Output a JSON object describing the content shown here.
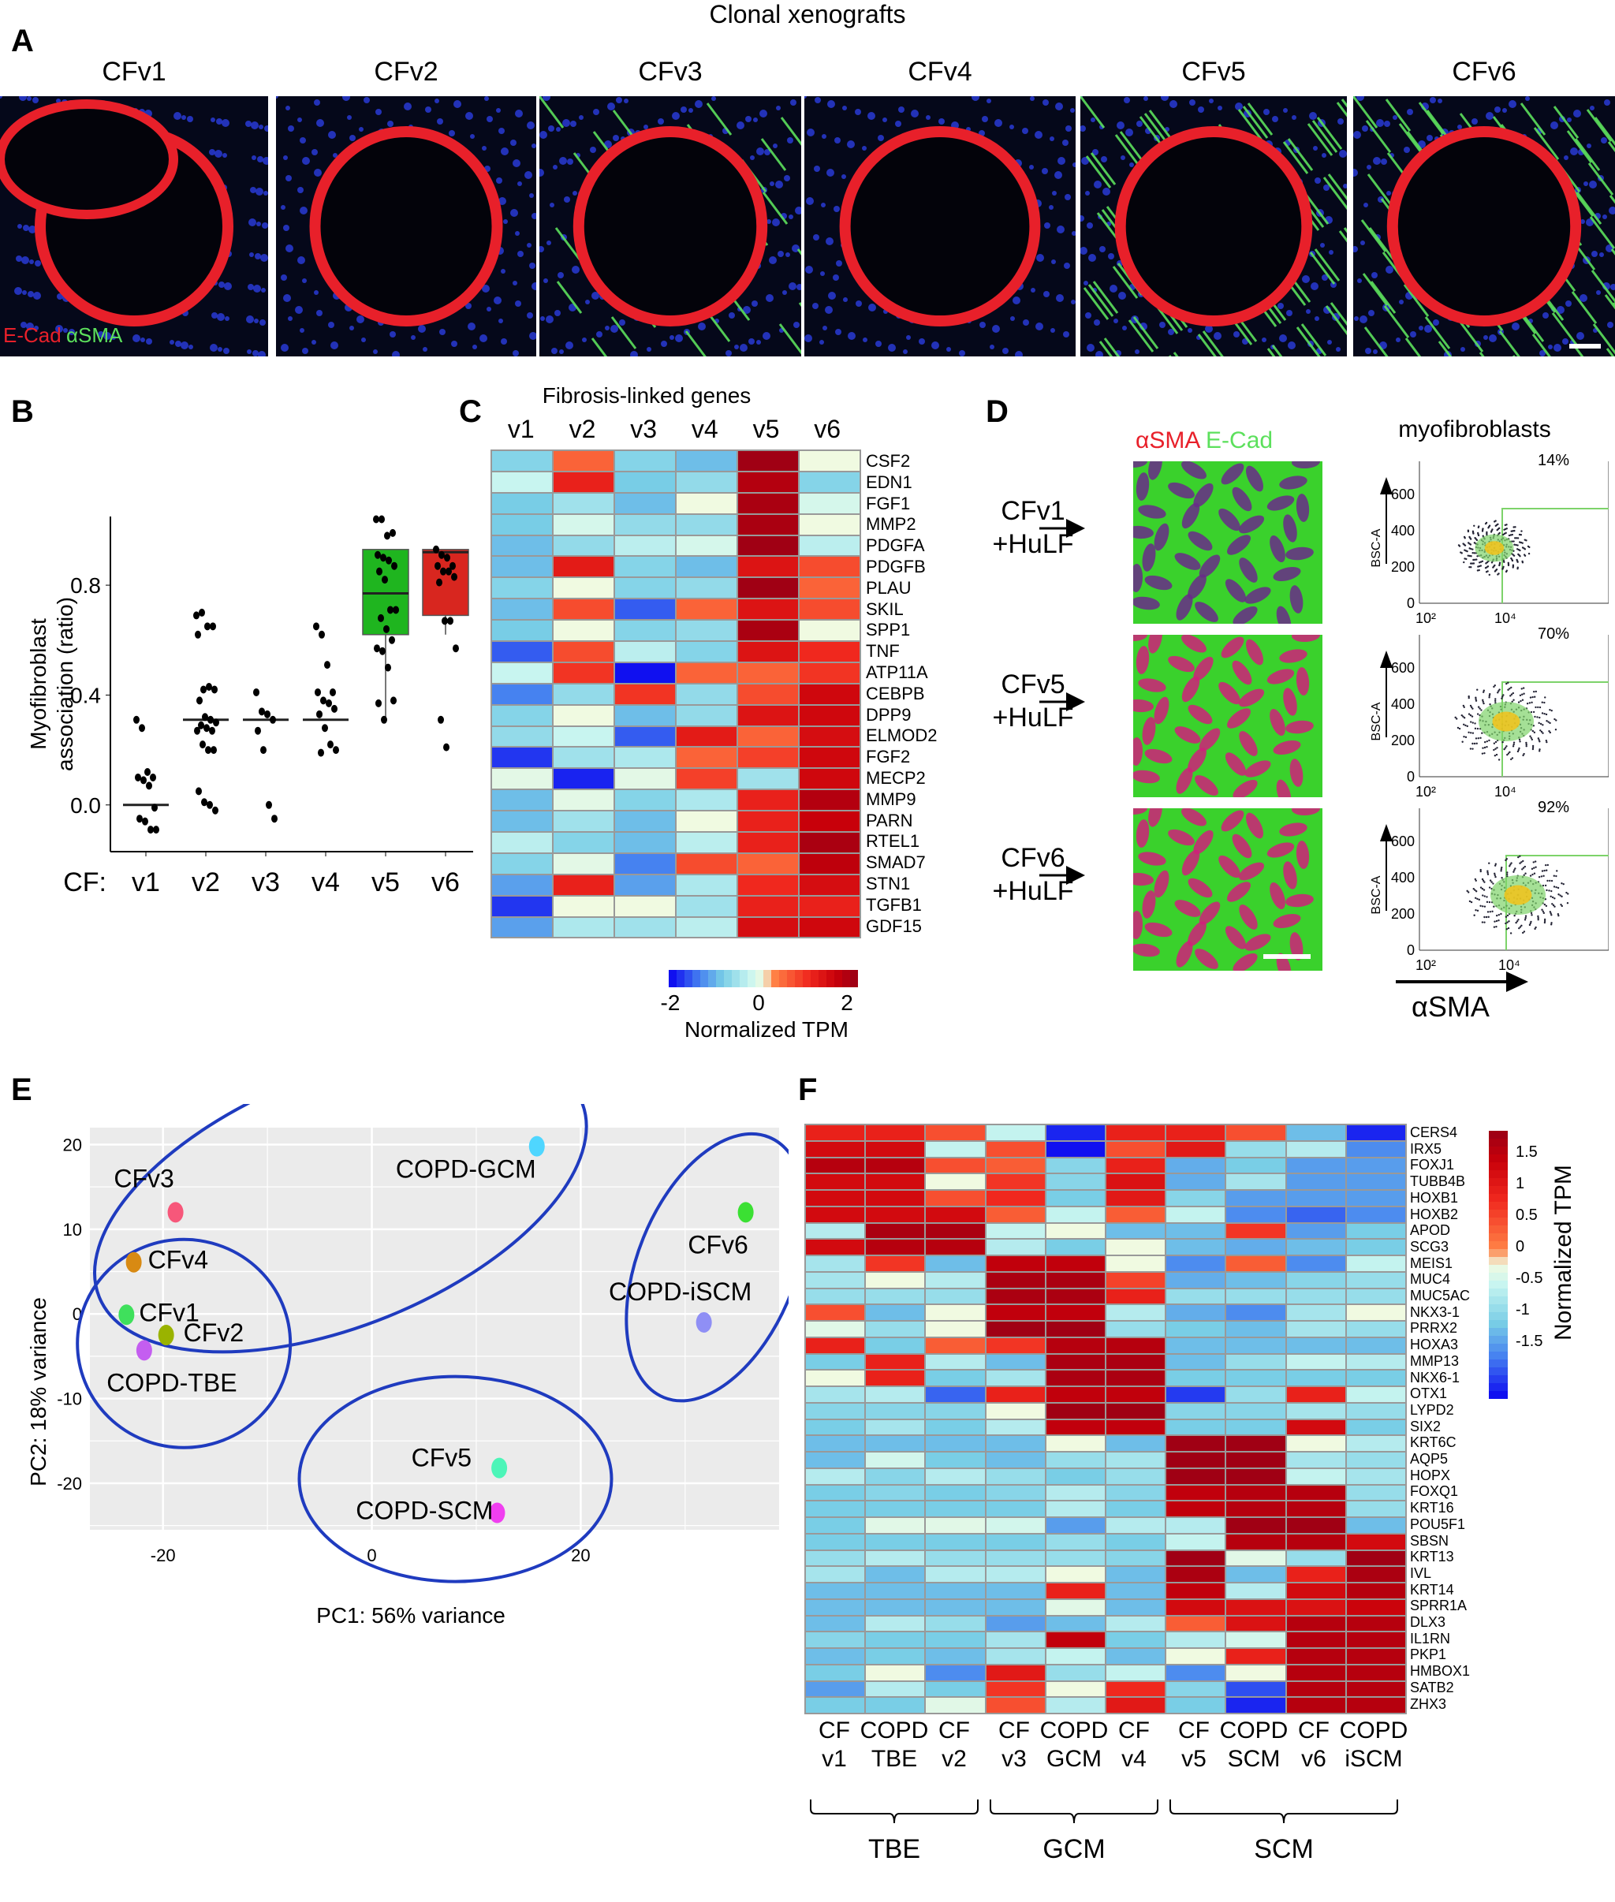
{
  "figure": {
    "panel_labels": [
      "A",
      "B",
      "C",
      "D",
      "E",
      "F"
    ]
  },
  "panel_a": {
    "title": "Clonal xenografts",
    "images": [
      {
        "label": "CFv1",
        "stain": "blue-red"
      },
      {
        "label": "CFv2",
        "stain": "blue-red"
      },
      {
        "label": "CFv3",
        "stain": "blue-red-green"
      },
      {
        "label": "CFv4",
        "stain": "blue-red"
      },
      {
        "label": "CFv5",
        "stain": "green-red"
      },
      {
        "label": "CFv6",
        "stain": "green-red-blue"
      }
    ],
    "legend_ecad": "E-Cad",
    "legend_asma": "αSMA",
    "colors": {
      "ecad": "#e8202a",
      "asma": "#5ce05c",
      "nuclei": "#2a3de0"
    }
  },
  "chart_data": [
    {
      "panel": "B",
      "type": "scatter",
      "title": "",
      "xlabel": "CF:",
      "ylabel": "Myofibroblast association (ratio)",
      "categories": [
        "v1",
        "v2",
        "v3",
        "v4",
        "v5",
        "v6"
      ],
      "yticks": [
        0.0,
        0.4,
        0.8
      ],
      "ylim": [
        -0.17,
        1.05
      ],
      "medians": [
        0.0,
        0.31,
        0.31,
        0.31,
        0.77,
        0.92
      ],
      "boxes": [
        null,
        null,
        null,
        null,
        {
          "q1": 0.62,
          "median": 0.77,
          "q3": 0.93,
          "whisker_low": 0.31,
          "whisker_high": 0.93,
          "color": "#1fb51f"
        },
        {
          "q1": 0.69,
          "median": 0.92,
          "q3": 0.93,
          "whisker_low": 0.62,
          "whisker_high": 0.93,
          "color": "#d8261f"
        }
      ],
      "points": [
        [
          0.31,
          0.28,
          0.12,
          0.1,
          0.1,
          0.09,
          0.07,
          -0.01,
          -0.05,
          -0.06,
          -0.09,
          -0.09
        ],
        [
          0.69,
          0.7,
          0.65,
          0.65,
          0.62,
          0.42,
          0.43,
          0.42,
          0.38,
          0.32,
          0.31,
          0.3,
          0.29,
          0.28,
          0.27,
          0.27,
          0.22,
          0.2,
          0.2,
          0.05,
          0.01,
          0.0,
          -0.02
        ],
        [
          0.41,
          0.34,
          0.33,
          0.31,
          0.27,
          0.2,
          0.0,
          -0.05
        ],
        [
          0.65,
          0.62,
          0.51,
          0.41,
          0.41,
          0.38,
          0.37,
          0.35,
          0.33,
          0.28,
          0.22,
          0.2,
          0.19
        ],
        [
          1.04,
          1.04,
          0.98,
          0.99,
          0.91,
          0.9,
          0.89,
          0.87,
          0.85,
          0.82,
          0.71,
          0.71,
          0.68,
          0.64,
          0.6,
          0.57,
          0.56,
          0.5,
          0.38,
          0.37,
          0.31
        ],
        [
          0.93,
          0.91,
          0.9,
          0.87,
          0.87,
          0.85,
          0.85,
          0.83,
          0.81,
          0.67,
          0.67,
          0.57,
          0.31,
          0.21
        ]
      ]
    },
    {
      "panel": "C",
      "type": "heatmap",
      "title": "Fibrosis-linked genes",
      "columns": [
        "v1",
        "v2",
        "v3",
        "v4",
        "v5",
        "v6"
      ],
      "rows": [
        "CSF2",
        "EDN1",
        "FGF1",
        "MMP2",
        "PDGFA",
        "PDGFB",
        "PLAU",
        "SKIL",
        "SPP1",
        "TNF",
        "ATP11A",
        "CEBPB",
        "DPP9",
        "ELMOD2",
        "FGF2",
        "MECP2",
        "MMP9",
        "PARN",
        "RTEL1",
        "SMAD7",
        "STN1",
        "TGFB1",
        "GDF15"
      ],
      "values": [
        [
          -0.8,
          0.5,
          -0.8,
          -1.0,
          2.0,
          0.0
        ],
        [
          -0.3,
          1.1,
          -0.9,
          -0.7,
          1.8,
          -0.8
        ],
        [
          -0.9,
          -0.6,
          -1.0,
          0.0,
          1.9,
          -0.2
        ],
        [
          -0.9,
          -0.2,
          -0.7,
          -0.7,
          1.9,
          0.0
        ],
        [
          -1.0,
          -0.7,
          -0.4,
          -0.2,
          2.1,
          -0.4
        ],
        [
          -1.0,
          1.2,
          -0.8,
          -1.0,
          1.3,
          0.7
        ],
        [
          -0.8,
          0.0,
          -0.8,
          -0.7,
          2.0,
          0.5
        ],
        [
          -1.0,
          0.7,
          -1.6,
          0.5,
          1.3,
          0.7
        ],
        [
          -0.9,
          0.0,
          -0.8,
          -0.7,
          1.9,
          0.0
        ],
        [
          -1.6,
          0.7,
          -0.4,
          -0.8,
          1.3,
          1.0
        ],
        [
          -0.3,
          0.9,
          -2.0,
          0.5,
          0.5,
          0.9
        ],
        [
          -1.4,
          -0.7,
          0.9,
          -0.7,
          0.7,
          1.5
        ],
        [
          -0.8,
          0.0,
          -1.0,
          -0.7,
          1.3,
          1.5
        ],
        [
          -0.7,
          -0.3,
          -1.6,
          1.2,
          0.5,
          1.4
        ],
        [
          -1.8,
          -0.6,
          -0.5,
          0.5,
          0.8,
          1.5
        ],
        [
          -0.1,
          -1.9,
          -0.1,
          0.8,
          -0.6,
          1.5
        ],
        [
          -1.0,
          -0.1,
          -0.8,
          -0.5,
          1.1,
          1.8
        ],
        [
          -1.0,
          -0.6,
          -1.0,
          0.0,
          1.1,
          1.6
        ],
        [
          -0.4,
          -0.8,
          -1.0,
          -0.4,
          1.1,
          1.9
        ],
        [
          -0.8,
          -0.1,
          -1.4,
          0.7,
          0.5,
          1.7
        ],
        [
          -1.2,
          1.1,
          -1.2,
          -0.5,
          1.0,
          1.4
        ],
        [
          -1.8,
          0.0,
          0.0,
          -0.6,
          1.1,
          1.1
        ],
        [
          -1.2,
          -0.5,
          -0.6,
          -0.4,
          1.4,
          1.5
        ]
      ],
      "colorbar": {
        "label": "Normalized TPM",
        "ticks": [
          -2,
          0,
          2
        ],
        "range": [
          -2,
          2
        ]
      }
    },
    {
      "panel": "D",
      "type": "scatter",
      "title": "myofibroblasts",
      "stain_legend": {
        "asma": "αSMA",
        "ecad": "E-Cad"
      },
      "xlabel": "αSMA",
      "ylabel": "BSC-A",
      "xticks": [
        "10²",
        "10⁴"
      ],
      "yticks": [
        0,
        200,
        400,
        600
      ],
      "plots": [
        {
          "condition": "CFv1 +HuLF",
          "gate_percent": "14%"
        },
        {
          "condition": "CFv5 +HuLF",
          "gate_percent": "70%"
        },
        {
          "condition": "CFv6 +HuLF",
          "gate_percent": "92%"
        }
      ]
    },
    {
      "panel": "E",
      "type": "scatter",
      "title": "",
      "xlabel": "PC1: 56% variance",
      "ylabel": "PC2: 18% variance",
      "xticks": [
        -20,
        0,
        20
      ],
      "yticks": [
        -20,
        -10,
        0,
        10,
        20
      ],
      "xlim": [
        -27,
        39
      ],
      "ylim": [
        -25.5,
        22
      ],
      "points": [
        {
          "label": "COPD-GCM",
          "x": 15.8,
          "y": 19.8,
          "color": "#4fd6ff"
        },
        {
          "label": "CFv3",
          "x": -18.8,
          "y": 12.0,
          "color": "#f7577a"
        },
        {
          "label": "CFv4",
          "x": -22.8,
          "y": 6.1,
          "color": "#d88a13"
        },
        {
          "label": "CFv6",
          "x": 35.8,
          "y": 12.0,
          "color": "#3be033"
        },
        {
          "label": "CFv1",
          "x": -23.5,
          "y": -0.1,
          "color": "#3fe05c"
        },
        {
          "label": "CFv2",
          "x": -19.7,
          "y": -2.5,
          "color": "#9ab300"
        },
        {
          "label": "COPD-TBE",
          "x": -21.8,
          "y": -4.3,
          "color": "#c45ef0"
        },
        {
          "label": "COPD-iSCM",
          "x": 31.8,
          "y": -1.0,
          "color": "#8f8ff5"
        },
        {
          "label": "CFv5",
          "x": 12.2,
          "y": -18.2,
          "color": "#4cf5b8"
        },
        {
          "label": "COPD-SCM",
          "x": 12.0,
          "y": -23.5,
          "color": "#f03ff0"
        }
      ],
      "groups": [
        "CFv3/CFv4/COPD-GCM",
        "CFv1/CFv2/COPD-TBE",
        "CFv6/COPD-iSCM",
        "CFv5/COPD-SCM"
      ],
      "ellipse_color": "#1f3bbf"
    },
    {
      "panel": "F",
      "type": "heatmap",
      "columns": [
        "CF v1",
        "COPD TBE",
        "CF v2",
        "CF v3",
        "COPD GCM",
        "CF v4",
        "CF v5",
        "COPD SCM",
        "CF v6",
        "COPD iSCM"
      ],
      "column_top": [
        "CF",
        "COPD",
        "CF",
        "CF",
        "COPD",
        "CF",
        "CF",
        "COPD",
        "CF",
        "COPD"
      ],
      "column_bottom": [
        "v1",
        "TBE",
        "v2",
        "v3",
        "GCM",
        "v4",
        "v5",
        "SCM",
        "v6",
        "iSCM"
      ],
      "column_groups": [
        {
          "label": "TBE",
          "span": [
            0,
            2
          ]
        },
        {
          "label": "GCM",
          "span": [
            3,
            5
          ]
        },
        {
          "label": "SCM",
          "span": [
            6,
            9
          ]
        }
      ],
      "rows": [
        "CERS4",
        "IRX5",
        "FOXJ1",
        "TUBB4B",
        "HOXB1",
        "HOXB2",
        "APOD",
        "SCG3",
        "MEIS1",
        "MUC4",
        "MUC5AC",
        "NKX3-1",
        "PRRX2",
        "HOXA3",
        "MMP13",
        "NKX6-1",
        "OTX1",
        "LYPD2",
        "SIX2",
        "KRT6C",
        "AQP5",
        "HOPX",
        "FOXQ1",
        "KRT16",
        "POU5F1",
        "SBSN",
        "KRT13",
        "IVL",
        "KRT14",
        "SPRR1A",
        "DLX3",
        "IL1RN",
        "PKP1",
        "HMBOX1",
        "SATB2",
        "ZHX3"
      ],
      "values": [
        [
          1.0,
          1.0,
          0.6,
          -0.3,
          -1.7,
          1.0,
          1.0,
          0.6,
          -0.9,
          -1.7
        ],
        [
          1.3,
          1.3,
          -0.3,
          0.6,
          -1.8,
          0.6,
          1.1,
          -0.6,
          -0.4,
          -1.2
        ],
        [
          1.6,
          1.6,
          0.6,
          0.5,
          -0.7,
          1.0,
          -1.0,
          -0.8,
          -1.1,
          -1.1
        ],
        [
          1.3,
          1.3,
          0.0,
          0.8,
          -0.7,
          1.2,
          -1.0,
          -0.5,
          -1.1,
          -1.1
        ],
        [
          1.3,
          1.3,
          0.6,
          0.9,
          -0.8,
          1.1,
          -0.7,
          -1.1,
          -1.1,
          -1.1
        ],
        [
          1.3,
          1.3,
          1.3,
          0.5,
          -0.3,
          0.5,
          -0.3,
          -1.2,
          -1.4,
          -1.2
        ],
        [
          -0.4,
          1.7,
          1.7,
          -0.3,
          0.0,
          -0.9,
          -0.9,
          0.8,
          -1.1,
          -0.8
        ],
        [
          1.3,
          1.6,
          1.6,
          -0.4,
          -0.8,
          0.0,
          -0.9,
          -1.0,
          -0.9,
          -0.8
        ],
        [
          -0.5,
          0.8,
          -0.9,
          1.5,
          1.5,
          0.0,
          -1.2,
          0.5,
          -1.2,
          -0.3
        ],
        [
          -0.5,
          0.0,
          -0.4,
          1.7,
          1.7,
          0.7,
          -1.0,
          -0.9,
          -0.7,
          -0.6
        ],
        [
          -0.6,
          -0.6,
          -0.6,
          1.7,
          1.7,
          1.0,
          -0.6,
          -0.6,
          -0.6,
          -0.6
        ],
        [
          0.6,
          -0.9,
          0.0,
          1.5,
          1.5,
          -0.4,
          -1.0,
          -1.2,
          -0.5,
          0.0
        ],
        [
          -0.1,
          -0.6,
          0.0,
          1.8,
          1.8,
          -0.6,
          -0.8,
          -0.9,
          -0.5,
          -0.6
        ],
        [
          1.0,
          -0.8,
          0.5,
          0.8,
          1.6,
          1.6,
          -0.9,
          -0.9,
          -0.9,
          -0.9
        ],
        [
          -0.8,
          1.0,
          -0.4,
          -0.9,
          1.7,
          1.7,
          -0.9,
          -0.6,
          -0.3,
          -0.4
        ],
        [
          0.0,
          1.0,
          -0.8,
          -0.5,
          1.7,
          1.7,
          -0.8,
          -0.8,
          -0.8,
          -0.8
        ],
        [
          -0.5,
          -0.4,
          -1.4,
          1.0,
          1.5,
          1.5,
          -1.6,
          -0.6,
          1.0,
          -0.3
        ],
        [
          -0.7,
          -0.7,
          -0.7,
          0.0,
          1.8,
          1.8,
          -0.7,
          -0.7,
          -0.5,
          -0.6
        ],
        [
          -0.8,
          -0.5,
          -0.8,
          -0.4,
          1.5,
          1.5,
          -0.8,
          -0.8,
          1.3,
          -0.8
        ],
        [
          -0.9,
          -0.9,
          -0.9,
          -0.9,
          0.0,
          -0.9,
          1.8,
          1.8,
          0.0,
          -0.4
        ],
        [
          -0.9,
          -0.2,
          -0.8,
          -0.9,
          -0.6,
          -0.5,
          1.8,
          1.8,
          -0.5,
          -0.6
        ],
        [
          -0.4,
          -0.7,
          -0.4,
          -0.6,
          -0.8,
          -0.6,
          1.8,
          1.8,
          -0.3,
          -0.5
        ],
        [
          -0.8,
          -0.7,
          -0.8,
          -0.7,
          -0.4,
          -0.7,
          1.5,
          1.6,
          1.6,
          -0.6
        ],
        [
          -0.8,
          -0.8,
          -0.8,
          -0.8,
          -0.4,
          -0.8,
          1.5,
          1.6,
          1.6,
          -0.6
        ],
        [
          -0.8,
          -0.1,
          -0.1,
          -0.2,
          -1.1,
          -0.4,
          -0.4,
          1.8,
          1.8,
          -0.9
        ],
        [
          -0.8,
          -0.8,
          -0.8,
          -0.8,
          -0.6,
          -0.8,
          -0.3,
          1.6,
          1.6,
          1.3
        ],
        [
          -0.6,
          -0.4,
          -0.6,
          -0.6,
          -0.6,
          -0.7,
          1.8,
          -0.1,
          -0.6,
          1.8
        ],
        [
          -0.5,
          -0.9,
          -0.4,
          -0.4,
          0.0,
          -0.9,
          1.7,
          -0.9,
          1.0,
          1.7
        ],
        [
          -0.9,
          -0.9,
          -0.9,
          -0.9,
          1.0,
          -0.9,
          1.5,
          -0.4,
          1.3,
          1.6
        ],
        [
          -0.9,
          -0.9,
          -0.9,
          -0.9,
          -0.1,
          -0.9,
          1.3,
          1.2,
          1.2,
          1.4
        ],
        [
          -0.9,
          -0.4,
          -0.6,
          -1.1,
          -0.9,
          -0.4,
          0.5,
          1.2,
          1.6,
          1.6
        ],
        [
          -0.7,
          -0.8,
          -0.8,
          -0.5,
          1.5,
          -0.8,
          -0.4,
          -0.2,
          1.6,
          1.6
        ],
        [
          -0.9,
          -0.8,
          -0.9,
          -0.5,
          -0.3,
          -0.9,
          0.0,
          1.0,
          1.6,
          1.6
        ],
        [
          -0.8,
          0.0,
          -1.2,
          1.1,
          -0.6,
          -0.3,
          -1.2,
          0.0,
          1.6,
          1.6
        ],
        [
          -1.1,
          -0.4,
          -0.8,
          0.8,
          0.0,
          0.9,
          -0.7,
          -1.5,
          1.6,
          1.6
        ],
        [
          -0.8,
          -0.8,
          -0.1,
          0.6,
          -0.4,
          1.1,
          -0.8,
          -1.7,
          1.6,
          1.6
        ]
      ],
      "colorbar": {
        "label": "Normalized TPM",
        "ticks": [
          1.5,
          1,
          0.5,
          0,
          -0.5,
          -1,
          -1.5
        ],
        "range": [
          -1.8,
          1.8
        ]
      }
    }
  ]
}
